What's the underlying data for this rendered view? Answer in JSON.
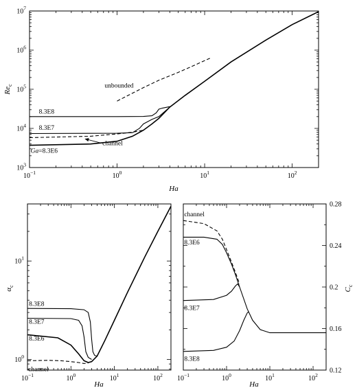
{
  "chart_data": [
    {
      "id": "top",
      "type": "line",
      "xlabel": "Ha",
      "ylabel": "Re",
      "ylabel_sub": "c",
      "xscale": "log",
      "yscale": "log",
      "xlim": [
        0.1,
        200
      ],
      "ylim": [
        1000,
        10000000
      ],
      "grid": false,
      "x_ticks": [
        {
          "value": 0.1,
          "base": "10",
          "exp": "−1"
        },
        {
          "value": 1,
          "base": "10",
          "exp": "0"
        },
        {
          "value": 10,
          "base": "10",
          "exp": "1"
        },
        {
          "value": 100,
          "base": "10",
          "exp": "2"
        }
      ],
      "y_ticks": [
        {
          "value": 1000,
          "base": "10",
          "exp": "3"
        },
        {
          "value": 10000,
          "base": "10",
          "exp": "4"
        },
        {
          "value": 100000,
          "base": "10",
          "exp": "5"
        },
        {
          "value": 1000000,
          "base": "10",
          "exp": "6"
        },
        {
          "value": 10000000,
          "base": "10",
          "exp": "7"
        }
      ],
      "series": [
        {
          "style": "solid",
          "x": [
            0.1,
            0.5,
            1,
            1.5,
            2,
            2.5,
            3,
            4,
            6,
            10,
            20,
            50,
            100,
            200
          ],
          "y": [
            3700,
            4000,
            4700,
            6300,
            9000,
            13000,
            18000,
            35000,
            70000,
            160000,
            500000,
            1800000,
            4500000,
            9600000
          ]
        },
        {
          "style": "dashed",
          "x": [
            1,
            2,
            3,
            5,
            8,
            12
          ],
          "y": [
            50000,
            110000,
            170000,
            270000,
            430000,
            650000
          ]
        },
        {
          "style": "dashed",
          "x": [
            0.1,
            0.5,
            1,
            1.5,
            2
          ],
          "y": [
            5800,
            6300,
            7200,
            8000,
            9000
          ]
        },
        {
          "style": "solid",
          "x": [
            0.1,
            1,
            1.5,
            1.8,
            2,
            2.5,
            3,
            4
          ],
          "y": [
            7400,
            7500,
            7800,
            10000,
            13000,
            17000,
            20000,
            35000
          ]
        },
        {
          "style": "solid",
          "x": [
            0.1,
            1,
            2,
            2.5,
            2.8,
            3,
            3.3,
            4
          ],
          "y": [
            20000,
            20000,
            20200,
            21000,
            25000,
            31000,
            33000,
            36000
          ]
        }
      ],
      "annotations": [
        {
          "text": "unbounded",
          "x": 0.72,
          "y": 110000,
          "anchor": "start"
        },
        {
          "text": "8.3E8",
          "x": 0.128,
          "y": 24000,
          "anchor": "start"
        },
        {
          "text": "8.3E7",
          "x": 0.128,
          "y": 9200,
          "anchor": "start"
        },
        {
          "text": "channel",
          "x": 0.68,
          "y": 3700,
          "anchor": "start"
        },
        {
          "text_italic": "Ga",
          "text": "=8.3E6",
          "x": 0.103,
          "y": 2400,
          "anchor": "start"
        }
      ],
      "arrow": {
        "from": [
          0.66,
          4200
        ],
        "to": [
          0.43,
          5400
        ]
      }
    },
    {
      "id": "bottom-left",
      "type": "line",
      "xlabel": "Ha",
      "ylabel": "α",
      "ylabel_sub": "c",
      "xscale": "log",
      "yscale": "log",
      "xlim": [
        0.1,
        200
      ],
      "ylim": [
        0.78,
        38
      ],
      "grid": false,
      "x_ticks": [
        {
          "value": 0.1,
          "base": "10",
          "exp": "−1"
        },
        {
          "value": 1,
          "base": "10",
          "exp": "0"
        },
        {
          "value": 10,
          "base": "10",
          "exp": "1"
        },
        {
          "value": 100,
          "base": "10",
          "exp": "2"
        }
      ],
      "y_ticks": [
        {
          "value": 1,
          "base": "10",
          "exp": "0"
        },
        {
          "value": 10,
          "base": "10",
          "exp": "1"
        }
      ],
      "series": [
        {
          "style": "solid",
          "x": [
            0.1,
            0.5,
            1,
            1.5,
            2,
            2.5,
            3,
            4,
            6,
            10,
            20,
            50,
            100,
            200
          ],
          "y": [
            1.78,
            1.66,
            1.4,
            1.14,
            0.97,
            0.93,
            0.95,
            1.08,
            1.55,
            2.5,
            4.8,
            11,
            20,
            36
          ]
        },
        {
          "style": "dashed",
          "x": [
            0.1,
            0.3,
            0.6,
            1,
            1.5,
            2,
            2.5
          ],
          "y": [
            0.97,
            0.98,
            0.97,
            0.95,
            0.93,
            0.91,
            0.92
          ]
        },
        {
          "style": "solid",
          "x": [
            0.1,
            1,
            1.5,
            1.8,
            2,
            2.2,
            2.5,
            3
          ],
          "y": [
            2.62,
            2.6,
            2.5,
            2.2,
            1.7,
            1.2,
            1.05,
            1.0
          ]
        },
        {
          "style": "solid",
          "x": [
            0.1,
            1,
            2,
            2.5,
            2.8,
            3,
            3.2,
            3.5,
            4
          ],
          "y": [
            3.3,
            3.28,
            3.2,
            3.0,
            2.4,
            1.6,
            1.2,
            1.1,
            1.08
          ]
        }
      ],
      "annotations": [
        {
          "text": "8.3E8",
          "x": 0.108,
          "y": 3.5,
          "anchor": "start"
        },
        {
          "text": "8.3E7",
          "x": 0.108,
          "y": 2.3,
          "anchor": "start"
        },
        {
          "text": "8.3E6",
          "x": 0.108,
          "y": 1.55,
          "anchor": "start"
        },
        {
          "text": "channel",
          "x": 0.104,
          "y": 0.76,
          "anchor": "start"
        }
      ]
    },
    {
      "id": "bottom-right",
      "type": "line",
      "xlabel": "Ha",
      "ylabel": "C",
      "ylabel_sub": "c",
      "xscale": "log",
      "yscale": "linear",
      "xlim": [
        0.1,
        200
      ],
      "ylim": [
        0.12,
        0.28
      ],
      "y_axis_side": "right",
      "grid": false,
      "x_ticks": [
        {
          "value": 0.1,
          "base": "10",
          "exp": "−1"
        },
        {
          "value": 1,
          "base": "10",
          "exp": "0"
        },
        {
          "value": 10,
          "base": "10",
          "exp": "1"
        },
        {
          "value": 100,
          "base": "10",
          "exp": "2"
        }
      ],
      "y_ticks": [
        {
          "value": 0.12,
          "label": "0.12"
        },
        {
          "value": 0.16,
          "label": "0.16"
        },
        {
          "value": 0.2,
          "label": "0.2"
        },
        {
          "value": 0.24,
          "label": "0.24"
        },
        {
          "value": 0.28,
          "label": "0.28"
        }
      ],
      "series": [
        {
          "style": "dashed",
          "x": [
            0.1,
            0.3,
            0.6,
            0.8,
            1,
            1.3,
            1.6,
            2
          ],
          "y": [
            0.264,
            0.261,
            0.254,
            0.246,
            0.236,
            0.224,
            0.214,
            0.203
          ]
        },
        {
          "style": "solid",
          "x": [
            0.1,
            0.3,
            0.6,
            0.8,
            1,
            1.3,
            1.6,
            2,
            3,
            4,
            6,
            10,
            20,
            50,
            200
          ],
          "y": [
            0.248,
            0.248,
            0.246,
            0.241,
            0.233,
            0.222,
            0.212,
            0.2,
            0.179,
            0.168,
            0.159,
            0.156,
            0.156,
            0.156,
            0.156
          ]
        },
        {
          "style": "solid",
          "x": [
            0.1,
            0.5,
            1,
            1.3,
            1.6,
            1.8,
            2
          ],
          "y": [
            0.187,
            0.188,
            0.192,
            0.196,
            0.201,
            0.203,
            0.2
          ]
        },
        {
          "style": "solid",
          "x": [
            0.1,
            0.5,
            1,
            1.5,
            2,
            2.5,
            3,
            3.2
          ],
          "y": [
            0.138,
            0.139,
            0.142,
            0.148,
            0.158,
            0.168,
            0.175,
            0.176
          ]
        }
      ],
      "annotations": [
        {
          "text": "channel",
          "x": 0.105,
          "y": 0.268,
          "anchor": "start"
        },
        {
          "text": "8.3E6",
          "x": 0.105,
          "y": 0.241,
          "anchor": "start"
        },
        {
          "text": "8.3E7",
          "x": 0.105,
          "y": 0.178,
          "anchor": "start"
        },
        {
          "text": "8.3E8",
          "x": 0.105,
          "y": 0.129,
          "anchor": "start"
        }
      ]
    }
  ]
}
